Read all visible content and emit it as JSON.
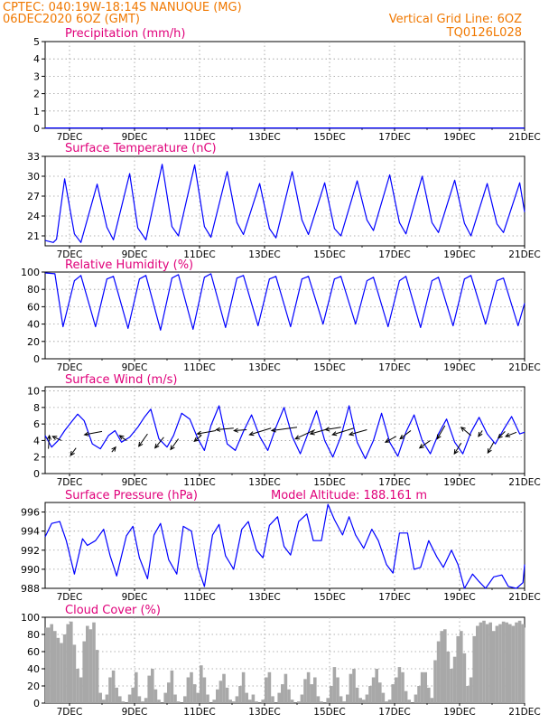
{
  "header": {
    "line1": "CPTEC:   040:19W-18:14S   NANUQUE (MG)",
    "line2": "06DEC2020 6OZ (GMT)",
    "right1": "Vertical Grid Line: 6OZ",
    "right2": "TQ0126L028"
  },
  "colors": {
    "header_text": "#f07800",
    "panel_title": "#e0007a",
    "series_line": "#0000ff",
    "cloud_fill": "#a8a8a8",
    "wind_arrow": "#000000",
    "grid": "#9a9a9a"
  },
  "x_ticks": [
    "7DEC",
    "9DEC",
    "11DEC",
    "13DEC",
    "15DEC",
    "17DEC",
    "19DEC",
    "21DEC"
  ],
  "chart_data": [
    {
      "id": "precip",
      "type": "line",
      "title": "Precipitation (mm/h)",
      "x_range": [
        6.25,
        21.0
      ],
      "ylim": [
        0,
        5
      ],
      "yticks": [
        0,
        1,
        2,
        3,
        4,
        5
      ],
      "grid": true,
      "series": [
        {
          "x": [
            6.25,
            8,
            10,
            12,
            14,
            16,
            18,
            20,
            21
          ],
          "y": [
            0.02,
            0.02,
            0.02,
            0.02,
            0.02,
            0.02,
            0.02,
            0.02,
            0.02
          ]
        }
      ]
    },
    {
      "id": "temp",
      "type": "line",
      "title": "Surface Temperature (nC)",
      "x_range": [
        6.25,
        21.0
      ],
      "ylim": [
        19.5,
        33
      ],
      "yticks": [
        21,
        24,
        27,
        30,
        33
      ],
      "grid": true,
      "series": [
        {
          "x": [
            6.25,
            6.5,
            6.6,
            6.85,
            7.15,
            7.35,
            7.85,
            8.15,
            8.35,
            8.85,
            9.1,
            9.35,
            9.85,
            10.15,
            10.35,
            10.85,
            11.15,
            11.35,
            11.85,
            12.15,
            12.35,
            12.85,
            13.15,
            13.35,
            13.85,
            14.15,
            14.35,
            14.85,
            15.15,
            15.35,
            15.85,
            16.15,
            16.35,
            16.85,
            17.15,
            17.35,
            17.85,
            18.15,
            18.35,
            18.85,
            19.15,
            19.35,
            19.85,
            20.15,
            20.35,
            20.85,
            21.0
          ],
          "y": [
            20.3,
            20.0,
            20.5,
            29.6,
            21.3,
            20.0,
            28.8,
            22.3,
            20.4,
            30.4,
            22.2,
            20.4,
            31.8,
            22.4,
            21.0,
            31.7,
            22.4,
            20.8,
            30.7,
            23.0,
            21.2,
            28.9,
            22.1,
            20.7,
            30.7,
            23.4,
            21.2,
            29.0,
            22.1,
            21.0,
            29.3,
            23.4,
            21.8,
            30.2,
            23.0,
            21.3,
            30.0,
            23.0,
            21.5,
            29.4,
            22.9,
            21.0,
            28.9,
            22.8,
            21.5,
            29.0,
            24.6
          ]
        }
      ]
    },
    {
      "id": "rh",
      "type": "line",
      "title": "Relative Humidity (%)",
      "x_range": [
        6.25,
        21.0
      ],
      "ylim": [
        0,
        100
      ],
      "yticks": [
        0,
        20,
        40,
        60,
        80,
        100
      ],
      "grid": true,
      "series": [
        {
          "x": [
            6.25,
            6.55,
            6.8,
            7.15,
            7.35,
            7.8,
            8.15,
            8.35,
            8.8,
            9.15,
            9.35,
            9.8,
            10.15,
            10.35,
            10.8,
            11.15,
            11.35,
            11.8,
            12.15,
            12.35,
            12.8,
            13.15,
            13.35,
            13.8,
            14.15,
            14.35,
            14.8,
            15.15,
            15.35,
            15.8,
            16.15,
            16.35,
            16.8,
            17.15,
            17.35,
            17.8,
            18.15,
            18.35,
            18.8,
            19.15,
            19.35,
            19.8,
            20.15,
            20.35,
            20.8,
            21.0
          ],
          "y": [
            99,
            98,
            37,
            90,
            96,
            37,
            92,
            95,
            35,
            92,
            96,
            33,
            93,
            97,
            34,
            94,
            98,
            36,
            93,
            96,
            38,
            92,
            95,
            37,
            92,
            95,
            40,
            92,
            95,
            40,
            90,
            94,
            37,
            90,
            95,
            36,
            90,
            94,
            38,
            92,
            96,
            40,
            90,
            93,
            38,
            64
          ]
        }
      ]
    },
    {
      "id": "wind",
      "type": "line",
      "title": "Surface Wind (m/s)",
      "x_range": [
        6.25,
        21.0
      ],
      "ylim": [
        0,
        10.5
      ],
      "yticks": [
        0,
        2,
        4,
        6,
        8,
        10
      ],
      "grid": true,
      "series": [
        {
          "x": [
            6.25,
            6.45,
            6.65,
            6.85,
            7.05,
            7.25,
            7.45,
            7.7,
            7.95,
            8.2,
            8.4,
            8.6,
            8.85,
            9.1,
            9.3,
            9.5,
            9.75,
            10.0,
            10.2,
            10.45,
            10.7,
            10.95,
            11.15,
            11.35,
            11.6,
            11.85,
            12.1,
            12.35,
            12.6,
            12.85,
            13.1,
            13.35,
            13.6,
            13.85,
            14.1,
            14.35,
            14.6,
            14.85,
            15.1,
            15.35,
            15.6,
            15.85,
            16.1,
            16.35,
            16.6,
            16.85,
            17.1,
            17.35,
            17.6,
            17.85,
            18.1,
            18.35,
            18.6,
            18.85,
            19.1,
            19.35,
            19.6,
            19.85,
            20.1,
            20.35,
            20.6,
            20.85,
            21.0
          ],
          "y": [
            4.6,
            3.2,
            4.0,
            5.2,
            6.2,
            7.2,
            6.4,
            3.6,
            3.0,
            4.6,
            5.2,
            3.8,
            4.4,
            5.6,
            6.8,
            7.8,
            4.2,
            3.2,
            4.6,
            7.3,
            6.6,
            4.2,
            2.8,
            5.8,
            8.2,
            3.6,
            2.8,
            5.1,
            7.1,
            4.5,
            2.8,
            5.6,
            8.0,
            4.5,
            2.4,
            5.0,
            7.6,
            4.0,
            2.0,
            4.5,
            8.2,
            3.8,
            1.8,
            4.0,
            7.3,
            3.8,
            2.1,
            5.0,
            7.1,
            4.0,
            2.4,
            4.8,
            6.6,
            3.8,
            2.4,
            5.0,
            6.8,
            4.8,
            3.6,
            5.3,
            6.9,
            4.8,
            5.0
          ]
        }
      ],
      "arrows": [
        {
          "x": 6.35,
          "y": 3.0,
          "dx": 0.05,
          "dy": 1.6
        },
        {
          "x": 6.75,
          "y": 4.0,
          "dx": -0.45,
          "dy": 0.5
        },
        {
          "x": 7.2,
          "y": 3.1,
          "dx": -0.28,
          "dy": -0.9
        },
        {
          "x": 8.0,
          "y": 5.1,
          "dx": -0.9,
          "dy": -0.4
        },
        {
          "x": 8.3,
          "y": 2.6,
          "dx": 0.2,
          "dy": 0.6
        },
        {
          "x": 8.75,
          "y": 4.0,
          "dx": -0.35,
          "dy": 0.6
        },
        {
          "x": 9.4,
          "y": 4.8,
          "dx": -0.45,
          "dy": -1.5
        },
        {
          "x": 9.9,
          "y": 4.4,
          "dx": -0.45,
          "dy": -1.3
        },
        {
          "x": 10.35,
          "y": 4.2,
          "dx": -0.4,
          "dy": -1.3
        },
        {
          "x": 11.05,
          "y": 4.6,
          "dx": -0.35,
          "dy": -0.7
        },
        {
          "x": 11.5,
          "y": 5.2,
          "dx": -0.95,
          "dy": -0.4
        },
        {
          "x": 12.05,
          "y": 5.5,
          "dx": -0.9,
          "dy": -0.2
        },
        {
          "x": 12.45,
          "y": 5.3,
          "dx": -0.65,
          "dy": -0.1
        },
        {
          "x": 13.2,
          "y": 5.5,
          "dx": -1.1,
          "dy": -0.8
        },
        {
          "x": 14.0,
          "y": 5.6,
          "dx": -1.3,
          "dy": -0.4
        },
        {
          "x": 14.55,
          "y": 5.3,
          "dx": -1.0,
          "dy": -1.1
        },
        {
          "x": 14.95,
          "y": 5.4,
          "dx": -0.9,
          "dy": -0.6
        },
        {
          "x": 15.35,
          "y": 5.6,
          "dx": -0.8,
          "dy": -0.3
        },
        {
          "x": 15.75,
          "y": 5.5,
          "dx": -1.1,
          "dy": -0.8
        },
        {
          "x": 16.15,
          "y": 5.3,
          "dx": -0.9,
          "dy": -0.6
        },
        {
          "x": 17.05,
          "y": 4.5,
          "dx": -0.55,
          "dy": -0.7
        },
        {
          "x": 17.5,
          "y": 5.2,
          "dx": -0.55,
          "dy": -1.0
        },
        {
          "x": 18.1,
          "y": 4.0,
          "dx": -0.55,
          "dy": -0.9
        },
        {
          "x": 18.55,
          "y": 5.8,
          "dx": -0.4,
          "dy": -1.6
        },
        {
          "x": 19.05,
          "y": 3.7,
          "dx": -0.35,
          "dy": -1.3
        },
        {
          "x": 19.35,
          "y": 4.6,
          "dx": -0.5,
          "dy": 1.0
        },
        {
          "x": 19.7,
          "y": 5.2,
          "dx": -0.2,
          "dy": -0.7
        },
        {
          "x": 20.05,
          "y": 3.8,
          "dx": -0.3,
          "dy": -1.3
        },
        {
          "x": 20.4,
          "y": 5.1,
          "dx": -0.35,
          "dy": -0.8
        },
        {
          "x": 20.75,
          "y": 5.0,
          "dx": -0.55,
          "dy": -0.5
        }
      ]
    },
    {
      "id": "pressure",
      "type": "line",
      "title": "Surface Pressure (hPa)",
      "annotation": "Model Altitude: 188.161 m",
      "x_range": [
        6.25,
        21.0
      ],
      "ylim": [
        988,
        997
      ],
      "yticks": [
        988,
        990,
        992,
        994,
        996
      ],
      "grid": true,
      "series": [
        {
          "x": [
            6.25,
            6.45,
            6.7,
            6.9,
            7.15,
            7.4,
            7.55,
            7.8,
            8.05,
            8.25,
            8.45,
            8.75,
            8.95,
            9.15,
            9.4,
            9.6,
            9.8,
            10.05,
            10.3,
            10.5,
            10.75,
            10.95,
            11.15,
            11.4,
            11.6,
            11.8,
            12.05,
            12.3,
            12.5,
            12.75,
            12.95,
            13.15,
            13.4,
            13.6,
            13.8,
            14.05,
            14.3,
            14.5,
            14.75,
            14.95,
            15.15,
            15.4,
            15.6,
            15.8,
            16.05,
            16.3,
            16.5,
            16.75,
            16.95,
            17.15,
            17.4,
            17.6,
            17.8,
            18.05,
            18.3,
            18.5,
            18.75,
            18.95,
            19.15,
            19.4,
            19.6,
            19.8,
            20.05,
            20.3,
            20.5,
            20.75,
            20.95,
            21.0
          ],
          "y": [
            993.4,
            994.8,
            995.0,
            993.0,
            989.5,
            993.2,
            992.5,
            993.0,
            994.2,
            991.4,
            989.3,
            993.5,
            994.5,
            991.2,
            989.0,
            993.6,
            994.8,
            991.0,
            989.5,
            994.5,
            994.0,
            990.2,
            988.2,
            993.6,
            994.7,
            991.4,
            990.0,
            994.2,
            995.0,
            992.0,
            991.2,
            994.6,
            995.5,
            992.4,
            991.5,
            995.0,
            995.8,
            993.0,
            993.0,
            996.8,
            995.2,
            993.6,
            995.5,
            993.6,
            992.2,
            994.2,
            993.0,
            990.5,
            989.6,
            993.8,
            993.8,
            990.0,
            990.2,
            993.0,
            991.3,
            990.2,
            992.0,
            990.5,
            988.0,
            989.5,
            988.7,
            987.4,
            989.2,
            989.4,
            988.2,
            988.0,
            988.6,
            990.5
          ]
        }
      ]
    },
    {
      "id": "cloud",
      "type": "area",
      "title": "Cloud Cover (%)",
      "x_range": [
        6.25,
        21.0
      ],
      "ylim": [
        0,
        100
      ],
      "yticks": [
        0,
        20,
        40,
        60,
        80,
        100
      ],
      "grid": true,
      "series": [
        {
          "x": [
            6.25,
            6.4,
            6.5,
            6.6,
            6.7,
            6.8,
            6.9,
            7.0,
            7.1,
            7.2,
            7.3,
            7.4,
            7.5,
            7.6,
            7.7,
            7.8,
            7.9,
            8.0,
            8.1,
            8.2,
            8.3,
            8.4,
            8.5,
            8.6,
            8.7,
            8.8,
            8.9,
            9.0,
            9.1,
            9.2,
            9.3,
            9.4,
            9.5,
            9.6,
            9.7,
            9.8,
            9.9,
            10.0,
            10.1,
            10.2,
            10.3,
            10.4,
            10.5,
            10.6,
            10.7,
            10.8,
            10.9,
            11.0,
            11.1,
            11.2,
            11.3,
            11.4,
            11.5,
            11.6,
            11.7,
            11.8,
            11.9,
            12.0,
            12.1,
            12.2,
            12.3,
            12.4,
            12.5,
            12.6,
            12.7,
            12.8,
            12.9,
            13.0,
            13.1,
            13.2,
            13.3,
            13.4,
            13.5,
            13.6,
            13.7,
            13.8,
            13.9,
            14.0,
            14.1,
            14.2,
            14.3,
            14.4,
            14.5,
            14.6,
            14.7,
            14.8,
            14.9,
            15.0,
            15.1,
            15.2,
            15.3,
            15.4,
            15.5,
            15.6,
            15.7,
            15.8,
            15.9,
            16.0,
            16.1,
            16.2,
            16.3,
            16.4,
            16.5,
            16.6,
            16.7,
            16.8,
            16.9,
            17.0,
            17.1,
            17.2,
            17.3,
            17.4,
            17.5,
            17.6,
            17.7,
            17.8,
            17.9,
            18.0,
            18.1,
            18.2,
            18.3,
            18.4,
            18.5,
            18.6,
            18.7,
            18.8,
            18.9,
            19.0,
            19.1,
            19.2,
            19.3,
            19.4,
            19.5,
            19.6,
            19.7,
            19.8,
            19.9,
            20.0,
            20.1,
            20.2,
            20.3,
            20.4,
            20.5,
            20.6,
            20.7,
            20.8,
            20.9,
            21.0
          ],
          "y": [
            88,
            92,
            84,
            76,
            70,
            80,
            92,
            95,
            68,
            40,
            30,
            72,
            90,
            86,
            94,
            62,
            12,
            4,
            10,
            30,
            38,
            18,
            8,
            2,
            0,
            10,
            18,
            36,
            8,
            2,
            6,
            32,
            40,
            16,
            4,
            0,
            12,
            24,
            38,
            10,
            2,
            0,
            8,
            30,
            36,
            22,
            12,
            44,
            30,
            10,
            0,
            4,
            16,
            26,
            34,
            18,
            4,
            2,
            8,
            20,
            36,
            12,
            4,
            10,
            2,
            0,
            4,
            30,
            36,
            8,
            0,
            12,
            22,
            34,
            16,
            4,
            0,
            2,
            10,
            28,
            36,
            22,
            30,
            8,
            2,
            0,
            6,
            20,
            42,
            30,
            8,
            2,
            10,
            34,
            40,
            18,
            6,
            4,
            10,
            20,
            30,
            40,
            24,
            12,
            2,
            4,
            22,
            30,
            42,
            36,
            14,
            4,
            0,
            10,
            20,
            36,
            36,
            18,
            6,
            50,
            72,
            84,
            86,
            60,
            40,
            54,
            78,
            84,
            58,
            20,
            30,
            78,
            90,
            94,
            96,
            92,
            94,
            84,
            90,
            92,
            95,
            94,
            92,
            90,
            94,
            96,
            92,
            88
          ]
        }
      ]
    }
  ]
}
